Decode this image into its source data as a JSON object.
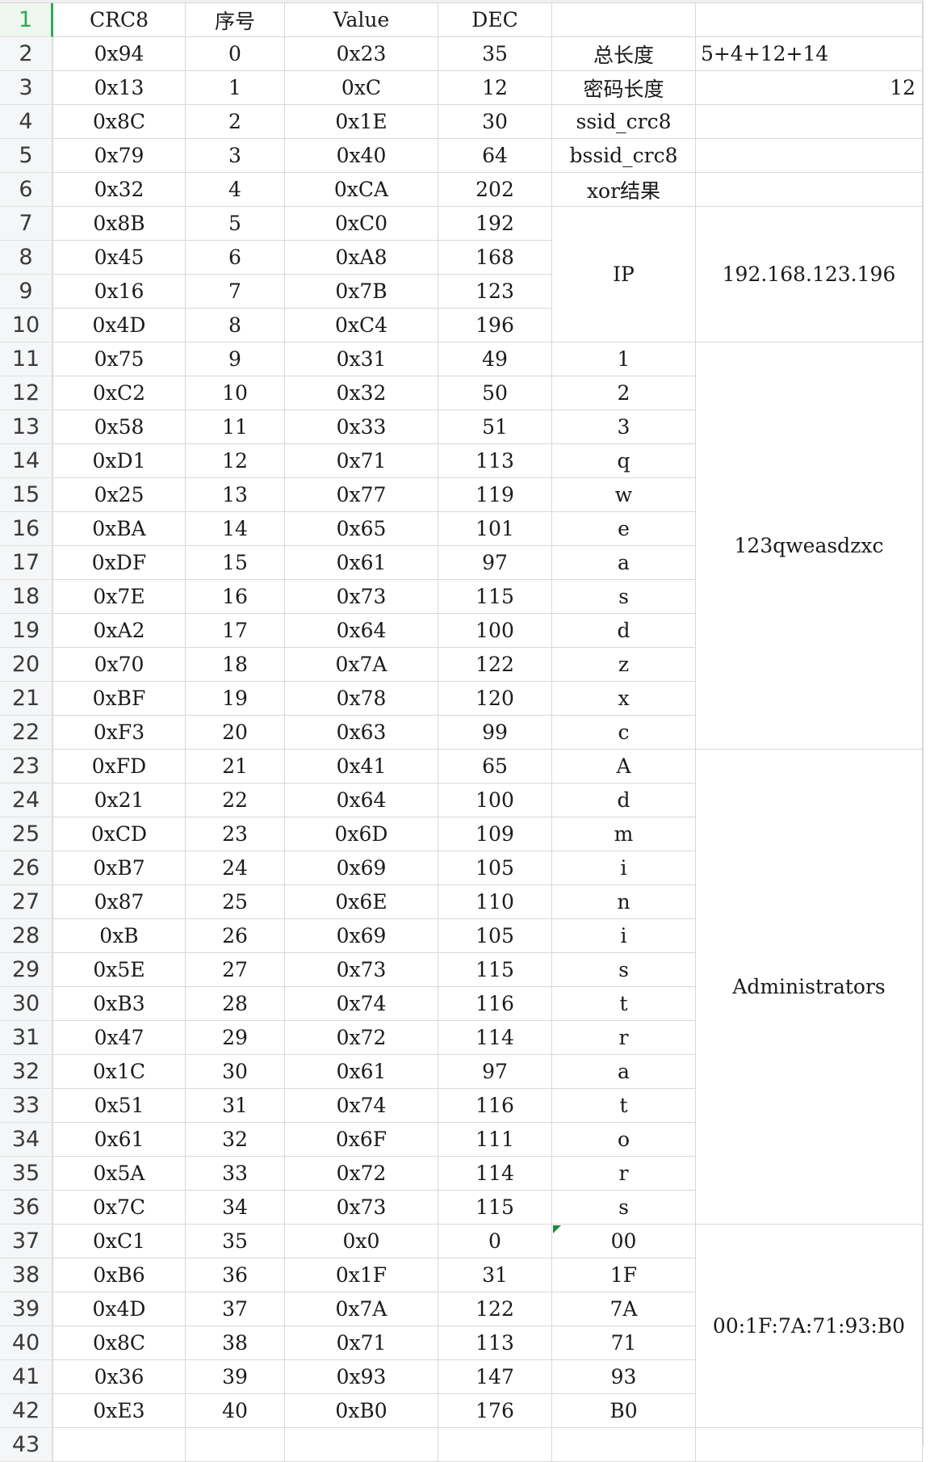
{
  "spreadsheet": {
    "active_row": 1,
    "rows": [
      {
        "n": "1",
        "a": "CRC8",
        "b": "序号",
        "c": "Value",
        "d": "DEC",
        "e": "",
        "f": ""
      },
      {
        "n": "2",
        "a": "0x94",
        "b": "0",
        "c": "0x23",
        "d": "35",
        "e": "总长度",
        "f": "5+4+12+14"
      },
      {
        "n": "3",
        "a": "0x13",
        "b": "1",
        "c": "0xC",
        "d": "12",
        "e": "密码长度",
        "f": "12"
      },
      {
        "n": "4",
        "a": "0x8C",
        "b": "2",
        "c": "0x1E",
        "d": "30",
        "e": "ssid_crc8",
        "f": ""
      },
      {
        "n": "5",
        "a": "0x79",
        "b": "3",
        "c": "0x40",
        "d": "64",
        "e": "bssid_crc8",
        "f": ""
      },
      {
        "n": "6",
        "a": "0x32",
        "b": "4",
        "c": "0xCA",
        "d": "202",
        "e": "xor结果",
        "f": ""
      },
      {
        "n": "7",
        "a": "0x8B",
        "b": "5",
        "c": "0xC0",
        "d": "192"
      },
      {
        "n": "8",
        "a": "0x45",
        "b": "6",
        "c": "0xA8",
        "d": "168"
      },
      {
        "n": "9",
        "a": "0x16",
        "b": "7",
        "c": "0x7B",
        "d": "123"
      },
      {
        "n": "10",
        "a": "0x4D",
        "b": "8",
        "c": "0xC4",
        "d": "196"
      },
      {
        "n": "11",
        "a": "0x75",
        "b": "9",
        "c": "0x31",
        "d": "49",
        "e": "1"
      },
      {
        "n": "12",
        "a": "0xC2",
        "b": "10",
        "c": "0x32",
        "d": "50",
        "e": "2"
      },
      {
        "n": "13",
        "a": "0x58",
        "b": "11",
        "c": "0x33",
        "d": "51",
        "e": "3"
      },
      {
        "n": "14",
        "a": "0xD1",
        "b": "12",
        "c": "0x71",
        "d": "113",
        "e": "q"
      },
      {
        "n": "15",
        "a": "0x25",
        "b": "13",
        "c": "0x77",
        "d": "119",
        "e": "w"
      },
      {
        "n": "16",
        "a": "0xBA",
        "b": "14",
        "c": "0x65",
        "d": "101",
        "e": "e"
      },
      {
        "n": "17",
        "a": "0xDF",
        "b": "15",
        "c": "0x61",
        "d": "97",
        "e": "a"
      },
      {
        "n": "18",
        "a": "0x7E",
        "b": "16",
        "c": "0x73",
        "d": "115",
        "e": "s"
      },
      {
        "n": "19",
        "a": "0xA2",
        "b": "17",
        "c": "0x64",
        "d": "100",
        "e": "d"
      },
      {
        "n": "20",
        "a": "0x70",
        "b": "18",
        "c": "0x7A",
        "d": "122",
        "e": "z"
      },
      {
        "n": "21",
        "a": "0xBF",
        "b": "19",
        "c": "0x78",
        "d": "120",
        "e": "x"
      },
      {
        "n": "22",
        "a": "0xF3",
        "b": "20",
        "c": "0x63",
        "d": "99",
        "e": "c"
      },
      {
        "n": "23",
        "a": "0xFD",
        "b": "21",
        "c": "0x41",
        "d": "65",
        "e": "A"
      },
      {
        "n": "24",
        "a": "0x21",
        "b": "22",
        "c": "0x64",
        "d": "100",
        "e": "d"
      },
      {
        "n": "25",
        "a": "0xCD",
        "b": "23",
        "c": "0x6D",
        "d": "109",
        "e": "m"
      },
      {
        "n": "26",
        "a": "0xB7",
        "b": "24",
        "c": "0x69",
        "d": "105",
        "e": "i"
      },
      {
        "n": "27",
        "a": "0x87",
        "b": "25",
        "c": "0x6E",
        "d": "110",
        "e": "n"
      },
      {
        "n": "28",
        "a": "0xB",
        "b": "26",
        "c": "0x69",
        "d": "105",
        "e": "i"
      },
      {
        "n": "29",
        "a": "0x5E",
        "b": "27",
        "c": "0x73",
        "d": "115",
        "e": "s"
      },
      {
        "n": "30",
        "a": "0xB3",
        "b": "28",
        "c": "0x74",
        "d": "116",
        "e": "t"
      },
      {
        "n": "31",
        "a": "0x47",
        "b": "29",
        "c": "0x72",
        "d": "114",
        "e": "r"
      },
      {
        "n": "32",
        "a": "0x1C",
        "b": "30",
        "c": "0x61",
        "d": "97",
        "e": "a"
      },
      {
        "n": "33",
        "a": "0x51",
        "b": "31",
        "c": "0x74",
        "d": "116",
        "e": "t"
      },
      {
        "n": "34",
        "a": "0x61",
        "b": "32",
        "c": "0x6F",
        "d": "111",
        "e": "o"
      },
      {
        "n": "35",
        "a": "0x5A",
        "b": "33",
        "c": "0x72",
        "d": "114",
        "e": "r"
      },
      {
        "n": "36",
        "a": "0x7C",
        "b": "34",
        "c": "0x73",
        "d": "115",
        "e": "s"
      },
      {
        "n": "37",
        "a": "0xC1",
        "b": "35",
        "c": "0x0",
        "d": "0",
        "e": "00"
      },
      {
        "n": "38",
        "a": "0xB6",
        "b": "36",
        "c": "0x1F",
        "d": "31",
        "e": "1F"
      },
      {
        "n": "39",
        "a": "0x4D",
        "b": "37",
        "c": "0x7A",
        "d": "122",
        "e": "7A"
      },
      {
        "n": "40",
        "a": "0x8C",
        "b": "38",
        "c": "0x71",
        "d": "113",
        "e": "71"
      },
      {
        "n": "41",
        "a": "0x36",
        "b": "39",
        "c": "0x93",
        "d": "147",
        "e": "93"
      },
      {
        "n": "42",
        "a": "0xE3",
        "b": "40",
        "c": "0xB0",
        "d": "176",
        "e": "B0"
      },
      {
        "n": "43"
      }
    ],
    "merged": {
      "ip_label": "IP",
      "ip_value": "192.168.123.196",
      "password_value": "123qweasdzxc",
      "username_value": "Administrators",
      "mac_value": "00:1F:7A:71:93:B0"
    }
  }
}
